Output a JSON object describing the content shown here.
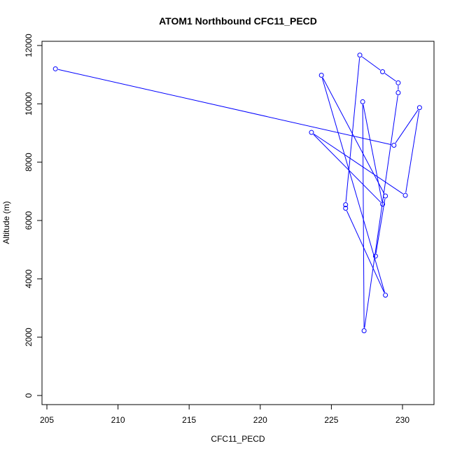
{
  "chart_data": {
    "type": "line",
    "title": "ATOM1 Northbound CFC11_PECD",
    "xlabel": "CFC11_PECD",
    "ylabel": "Altitude (m)",
    "xlim": [
      205,
      232
    ],
    "ylim": [
      0,
      12000
    ],
    "x_ticks": [
      205,
      210,
      215,
      220,
      225,
      230
    ],
    "y_ticks": [
      0,
      2000,
      4000,
      6000,
      8000,
      10000,
      12000
    ],
    "x_tick_labels": [
      "205",
      "210",
      "215",
      "220",
      "225",
      "230"
    ],
    "y_tick_labels": [
      "0",
      "2000",
      "4000",
      "6000",
      "8000",
      "10000",
      "12000"
    ],
    "grid": false,
    "series_color": "#0000ff",
    "series": [
      {
        "x": [
          205.6,
          229.4,
          231.2,
          230.2,
          223.6,
          228.6,
          227.2,
          227.3,
          229.7,
          229.7,
          228.6,
          227.0,
          226.0,
          226.0,
          228.8,
          224.3,
          228.8,
          228.1
        ],
        "y": [
          11200,
          8580,
          9870,
          6860,
          9020,
          6560,
          10070,
          2220,
          10380,
          10720,
          11100,
          11670,
          6540,
          6420,
          3440,
          10980,
          6840,
          4780
        ]
      }
    ]
  }
}
